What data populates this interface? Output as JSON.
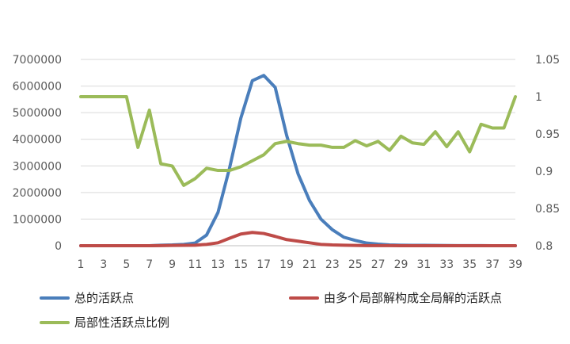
{
  "chart_data": {
    "type": "line",
    "x": [
      1,
      2,
      3,
      4,
      5,
      6,
      7,
      8,
      9,
      10,
      11,
      12,
      13,
      14,
      15,
      16,
      17,
      18,
      19,
      20,
      21,
      22,
      23,
      24,
      25,
      26,
      27,
      28,
      29,
      30,
      31,
      32,
      33,
      34,
      35,
      36,
      37,
      38,
      39
    ],
    "x_tick_labels": [
      "1",
      "3",
      "5",
      "7",
      "9",
      "11",
      "13",
      "15",
      "17",
      "19",
      "21",
      "23",
      "25",
      "27",
      "29",
      "31",
      "33",
      "35",
      "37",
      "39"
    ],
    "y_left_ticks": [
      "0",
      "1000000",
      "2000000",
      "3000000",
      "4000000",
      "5000000",
      "6000000",
      "7000000"
    ],
    "y_right_ticks": [
      "0.8",
      "0.85",
      "0.9",
      "0.95",
      "1",
      "1.05"
    ],
    "ylim_left": [
      0,
      7000000
    ],
    "ylim_right": [
      0.8,
      1.05
    ],
    "grid": "horizontal",
    "legend_position": "bottom",
    "series": [
      {
        "name": "总的活跃点",
        "axis": "left",
        "color": "#4a7ebb",
        "values": [
          0,
          0,
          0,
          0,
          0,
          0,
          0,
          20000,
          30000,
          50000,
          100000,
          400000,
          1250000,
          2900000,
          4800000,
          6200000,
          6400000,
          5950000,
          4150000,
          2700000,
          1700000,
          1000000,
          600000,
          320000,
          200000,
          100000,
          60000,
          30000,
          20000,
          15000,
          15000,
          10000,
          8000,
          5000,
          3000,
          2000,
          1000,
          500,
          200
        ]
      },
      {
        "name": "由多个局部解构成全局解的活跃点",
        "axis": "left",
        "color": "#be4b48",
        "values": [
          0,
          0,
          0,
          0,
          0,
          0,
          0,
          5000,
          10000,
          15000,
          20000,
          50000,
          110000,
          280000,
          440000,
          500000,
          460000,
          350000,
          230000,
          170000,
          110000,
          50000,
          30000,
          20000,
          10000,
          5000,
          3000,
          2000,
          1000,
          1000,
          500,
          500,
          300,
          200,
          100,
          50,
          20,
          10,
          5
        ]
      },
      {
        "name": "局部性活跃点比例",
        "axis": "right",
        "color": "#9bbb59",
        "values": [
          1.0,
          1.0,
          1.0,
          1.0,
          1.0,
          0.932,
          0.982,
          0.91,
          0.907,
          0.881,
          0.89,
          0.904,
          0.901,
          0.901,
          0.906,
          0.914,
          0.922,
          0.937,
          0.94,
          0.937,
          0.935,
          0.935,
          0.932,
          0.932,
          0.941,
          0.934,
          0.94,
          0.928,
          0.947,
          0.938,
          0.936,
          0.953,
          0.933,
          0.953,
          0.926,
          0.963,
          0.958,
          0.958,
          1.0
        ]
      }
    ]
  }
}
